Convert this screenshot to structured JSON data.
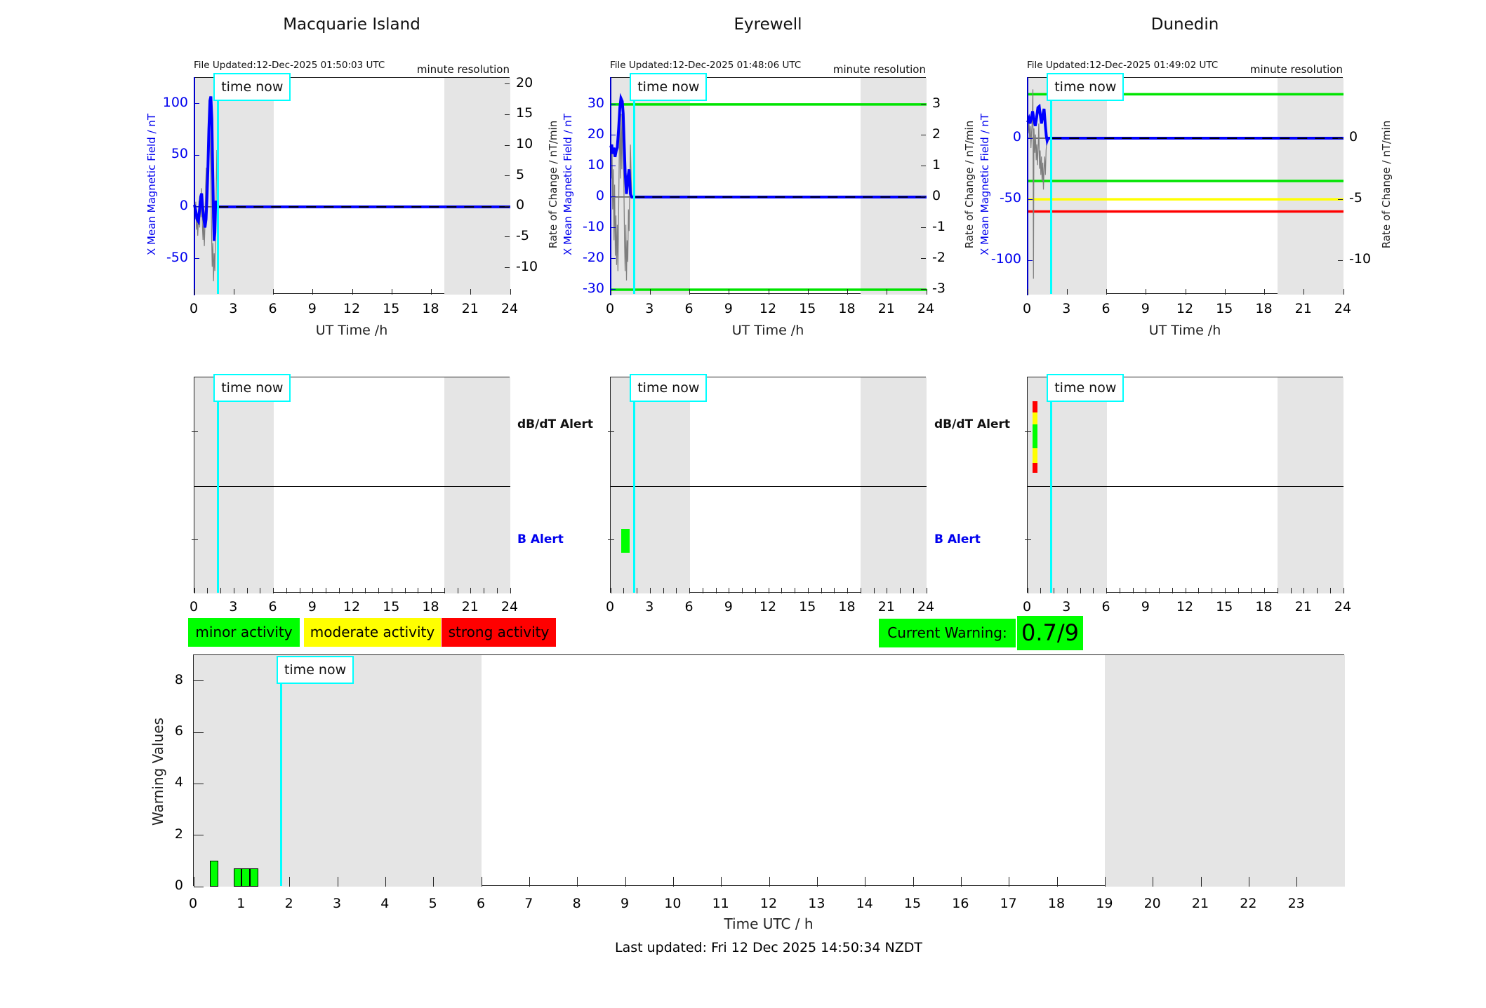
{
  "time_now_label": "time now",
  "alert_labels": {
    "dbdt": "dB/dT Alert",
    "b": "B Alert"
  },
  "legend": {
    "minor": "minor activity",
    "moderate": "moderate activity",
    "strong": "strong activity"
  },
  "current_warning": {
    "label": "Current Warning:",
    "value": "0.7/9"
  },
  "footer": {
    "last_updated": "Last updated: Fri 12 Dec 2025 14:50:34 NZDT"
  },
  "colors": {
    "blue_series": "#0000ff",
    "raw_series": "#7d7d7d",
    "cyan": "#00ffff",
    "green": "#00e400",
    "yellow": "#ffff00",
    "red": "#ff0000",
    "band_gray": "#e5e5e5",
    "legend_green": "#00ff00",
    "legend_yellow": "#ffff00",
    "legend_red": "#ff0000"
  },
  "chart_data": {
    "type": "line",
    "stations": [
      {
        "title": "Macquarie Island",
        "file_updated": "File Updated:12-Dec-2025 01:50:03 UTC",
        "resolution_note": "minute resolution",
        "left_axis_label": "X Mean Magnetic Field / nT",
        "right_axis_label": "Rate of Change / nT/min",
        "x_axis_label": "UT Time /h",
        "xlim": [
          0,
          24
        ],
        "x_ticks": [
          0,
          3,
          6,
          9,
          12,
          15,
          18,
          21,
          24
        ],
        "left_ylim": [
          -85,
          125
        ],
        "left_ticks": [
          100,
          50,
          0,
          -50
        ],
        "right_ylim": [
          -14.4,
          21.0
        ],
        "right_ticks": [
          20,
          15,
          10,
          5,
          0,
          -5,
          -10
        ],
        "gray_bands": [
          [
            0,
            6
          ],
          [
            19,
            24
          ]
        ],
        "time_now_h": 1.83,
        "thresholds": [],
        "series": {
          "mean": [
            [
              0,
              2
            ],
            [
              0.1,
              -4
            ],
            [
              0.2,
              -12
            ],
            [
              0.3,
              -14
            ],
            [
              0.38,
              -4
            ],
            [
              0.48,
              10
            ],
            [
              0.55,
              13
            ],
            [
              0.62,
              0
            ],
            [
              0.72,
              -12
            ],
            [
              0.8,
              -20
            ],
            [
              0.88,
              -12
            ],
            [
              0.95,
              8
            ],
            [
              1.02,
              35
            ],
            [
              1.1,
              75
            ],
            [
              1.18,
              103
            ],
            [
              1.25,
              107
            ],
            [
              1.32,
              85
            ],
            [
              1.38,
              40
            ],
            [
              1.45,
              -10
            ],
            [
              1.5,
              -33
            ],
            [
              1.55,
              -25
            ],
            [
              1.6,
              0
            ],
            [
              1.65,
              6
            ],
            [
              1.7,
              0
            ],
            [
              24,
              0
            ]
          ],
          "raw": [
            [
              0,
              0
            ],
            [
              0.05,
              -12
            ],
            [
              0.1,
              5
            ],
            [
              0.15,
              -22
            ],
            [
              0.2,
              -8
            ],
            [
              0.25,
              -28
            ],
            [
              0.3,
              -14
            ],
            [
              0.35,
              6
            ],
            [
              0.4,
              -20
            ],
            [
              0.45,
              12
            ],
            [
              0.5,
              -10
            ],
            [
              0.55,
              18
            ],
            [
              0.6,
              -18
            ],
            [
              0.65,
              -32
            ],
            [
              0.7,
              -12
            ],
            [
              0.75,
              -38
            ],
            [
              0.8,
              -18
            ],
            [
              0.85,
              20
            ],
            [
              0.9,
              38
            ],
            [
              0.95,
              15
            ],
            [
              1.0,
              52
            ],
            [
              1.05,
              30
            ],
            [
              1.1,
              68
            ],
            [
              1.15,
              92
            ],
            [
              1.2,
              55
            ],
            [
              1.25,
              25
            ],
            [
              1.3,
              -25
            ],
            [
              1.35,
              -58
            ],
            [
              1.4,
              -35
            ],
            [
              1.45,
              -72
            ],
            [
              1.5,
              -45
            ],
            [
              1.55,
              -62
            ],
            [
              1.6,
              -25
            ],
            [
              1.65,
              8
            ],
            [
              1.7,
              55
            ],
            [
              1.75,
              15
            ],
            [
              1.8,
              0
            ]
          ]
        },
        "alerts": {
          "show_labels": false,
          "dbdt_bars": [],
          "b_bars": []
        }
      },
      {
        "title": "Eyrewell",
        "file_updated": "File Updated:12-Dec-2025 01:48:06 UTC",
        "resolution_note": "minute resolution",
        "left_axis_label": "X Mean Magnetic Field / nT",
        "right_axis_label": "Rate of Change / nT/min",
        "x_axis_label": "UT Time /h",
        "xlim": [
          0,
          24
        ],
        "x_ticks": [
          0,
          3,
          6,
          9,
          12,
          15,
          18,
          21,
          24
        ],
        "left_ylim": [
          -31.6,
          38.6
        ],
        "left_ticks": [
          30,
          20,
          10,
          0,
          -10,
          -20,
          -30
        ],
        "right_ylim": [
          -3.16,
          3.86
        ],
        "right_ticks": [
          3,
          2,
          1,
          0,
          -1,
          -2,
          -3
        ],
        "gray_bands": [
          [
            0,
            6
          ],
          [
            19,
            24
          ]
        ],
        "time_now_h": 1.83,
        "thresholds": [
          {
            "v": 30,
            "color": "green"
          },
          {
            "v": -30,
            "color": "green"
          }
        ],
        "series": {
          "mean": [
            [
              0,
              16
            ],
            [
              0.08,
              17
            ],
            [
              0.15,
              14
            ],
            [
              0.25,
              16
            ],
            [
              0.33,
              13
            ],
            [
              0.42,
              15
            ],
            [
              0.5,
              16
            ],
            [
              0.6,
              22
            ],
            [
              0.7,
              29
            ],
            [
              0.78,
              32
            ],
            [
              0.88,
              31
            ],
            [
              0.95,
              27
            ],
            [
              1.02,
              18
            ],
            [
              1.1,
              8
            ],
            [
              1.2,
              1
            ],
            [
              1.3,
              6
            ],
            [
              1.4,
              9
            ],
            [
              1.5,
              1
            ],
            [
              1.6,
              0
            ],
            [
              24,
              0
            ]
          ],
          "raw": [
            [
              0,
              15
            ],
            [
              0.05,
              6
            ],
            [
              0.1,
              17
            ],
            [
              0.15,
              -4
            ],
            [
              0.2,
              9
            ],
            [
              0.25,
              -14
            ],
            [
              0.3,
              4
            ],
            [
              0.35,
              -19
            ],
            [
              0.4,
              -6
            ],
            [
              0.45,
              -22
            ],
            [
              0.5,
              -9
            ],
            [
              0.55,
              -24
            ],
            [
              0.6,
              -6
            ],
            [
              0.65,
              14
            ],
            [
              0.7,
              24
            ],
            [
              0.75,
              6
            ],
            [
              0.8,
              27
            ],
            [
              0.85,
              9
            ],
            [
              0.9,
              29
            ],
            [
              0.95,
              14
            ],
            [
              1.0,
              4
            ],
            [
              1.05,
              -14
            ],
            [
              1.1,
              -24
            ],
            [
              1.15,
              -9
            ],
            [
              1.2,
              -27
            ],
            [
              1.25,
              -14
            ],
            [
              1.3,
              -21
            ],
            [
              1.35,
              -4
            ],
            [
              1.4,
              -11
            ],
            [
              1.45,
              4
            ],
            [
              1.5,
              17
            ],
            [
              1.55,
              7
            ],
            [
              1.6,
              0
            ]
          ]
        },
        "alerts": {
          "show_labels": true,
          "dbdt_bars": [],
          "b_bars": [
            {
              "t0": 0.8,
              "t1": 1.45,
              "y0": 0.4,
              "y1": 0.62,
              "color": "green"
            }
          ]
        }
      },
      {
        "title": "Dunedin",
        "file_updated": "File Updated:12-Dec-2025 01:49:02 UTC",
        "resolution_note": "minute resolution",
        "left_axis_label": "X Mean Magnetic Field / nT",
        "right_axis_label": "Rate of Change / nT/min",
        "x_axis_label": "UT Time /h",
        "xlim": [
          0,
          24
        ],
        "x_ticks": [
          0,
          3,
          6,
          9,
          12,
          15,
          18,
          21,
          24
        ],
        "left_ylim": [
          -128,
          49.4
        ],
        "left_ticks": [
          0,
          -50,
          -100
        ],
        "right_ylim": [
          -12.8,
          4.94
        ],
        "right_ticks": [
          0,
          -5,
          -10
        ],
        "gray_bands": [
          [
            0,
            6
          ],
          [
            19,
            24
          ]
        ],
        "time_now_h": 1.83,
        "thresholds": [
          {
            "v": 36,
            "color": "green"
          },
          {
            "v": -35,
            "color": "green"
          },
          {
            "v": -50,
            "color": "yellow"
          },
          {
            "v": -60,
            "color": "red"
          }
        ],
        "series": {
          "mean": [
            [
              0,
              13
            ],
            [
              0.1,
              16
            ],
            [
              0.18,
              12
            ],
            [
              0.28,
              17
            ],
            [
              0.38,
              22
            ],
            [
              0.48,
              15
            ],
            [
              0.58,
              10
            ],
            [
              0.68,
              17
            ],
            [
              0.78,
              25
            ],
            [
              0.88,
              26
            ],
            [
              0.95,
              20
            ],
            [
              1.05,
              12
            ],
            [
              1.15,
              19
            ],
            [
              1.25,
              24
            ],
            [
              1.35,
              10
            ],
            [
              1.42,
              2
            ],
            [
              1.48,
              -2
            ],
            [
              1.55,
              0
            ],
            [
              24,
              0
            ]
          ],
          "raw": [
            [
              0,
              12
            ],
            [
              0.05,
              4
            ],
            [
              0.1,
              15
            ],
            [
              0.15,
              0
            ],
            [
              0.2,
              10
            ],
            [
              0.25,
              -8
            ],
            [
              0.3,
              5
            ],
            [
              0.35,
              14
            ],
            [
              0.4,
              40
            ],
            [
              0.44,
              -115
            ],
            [
              0.48,
              8
            ],
            [
              0.55,
              -12
            ],
            [
              0.6,
              3
            ],
            [
              0.65,
              -18
            ],
            [
              0.7,
              -5
            ],
            [
              0.75,
              -22
            ],
            [
              0.8,
              -8
            ],
            [
              0.85,
              12
            ],
            [
              0.9,
              -25
            ],
            [
              0.95,
              -10
            ],
            [
              1.0,
              -30
            ],
            [
              1.05,
              -15
            ],
            [
              1.1,
              -35
            ],
            [
              1.15,
              -20
            ],
            [
              1.2,
              -42
            ],
            [
              1.25,
              -25
            ],
            [
              1.3,
              -15
            ],
            [
              1.35,
              -30
            ],
            [
              1.4,
              -10
            ],
            [
              1.45,
              -3
            ],
            [
              1.5,
              0
            ]
          ]
        },
        "alerts": {
          "show_labels": true,
          "dbdt_bars": [
            {
              "t0": 0.37,
              "t1": 0.72,
              "segments": [
                {
                  "color": "red",
                  "y0": 0.22,
                  "y1": 0.32
                },
                {
                  "color": "yellow",
                  "y0": 0.32,
                  "y1": 0.43
                },
                {
                  "color": "green",
                  "y0": 0.43,
                  "y1": 0.65
                },
                {
                  "color": "yellow",
                  "y0": 0.65,
                  "y1": 0.79
                },
                {
                  "color": "red",
                  "y0": 0.79,
                  "y1": 0.88
                }
              ]
            }
          ],
          "b_bars": []
        }
      }
    ],
    "warning_chart": {
      "type": "bar",
      "ylabel": "Warning Values",
      "xlabel": "Time UTC / h",
      "ylim": [
        0,
        9
      ],
      "yticks": [
        0,
        2,
        4,
        6,
        8
      ],
      "xlim": [
        0,
        24
      ],
      "x_ticks": [
        0,
        1,
        2,
        3,
        4,
        5,
        6,
        7,
        8,
        9,
        10,
        11,
        12,
        13,
        14,
        15,
        16,
        17,
        18,
        19,
        20,
        21,
        22,
        23
      ],
      "gray_bands": [
        [
          0,
          6
        ],
        [
          19,
          24
        ]
      ],
      "time_now_h": 1.83,
      "bars": [
        {
          "t": 0.33,
          "w": 0.18,
          "v": 1.0
        },
        {
          "t": 0.83,
          "w": 0.17,
          "v": 0.7
        },
        {
          "t": 1.0,
          "w": 0.17,
          "v": 0.7
        },
        {
          "t": 1.17,
          "w": 0.17,
          "v": 0.7
        }
      ]
    }
  }
}
